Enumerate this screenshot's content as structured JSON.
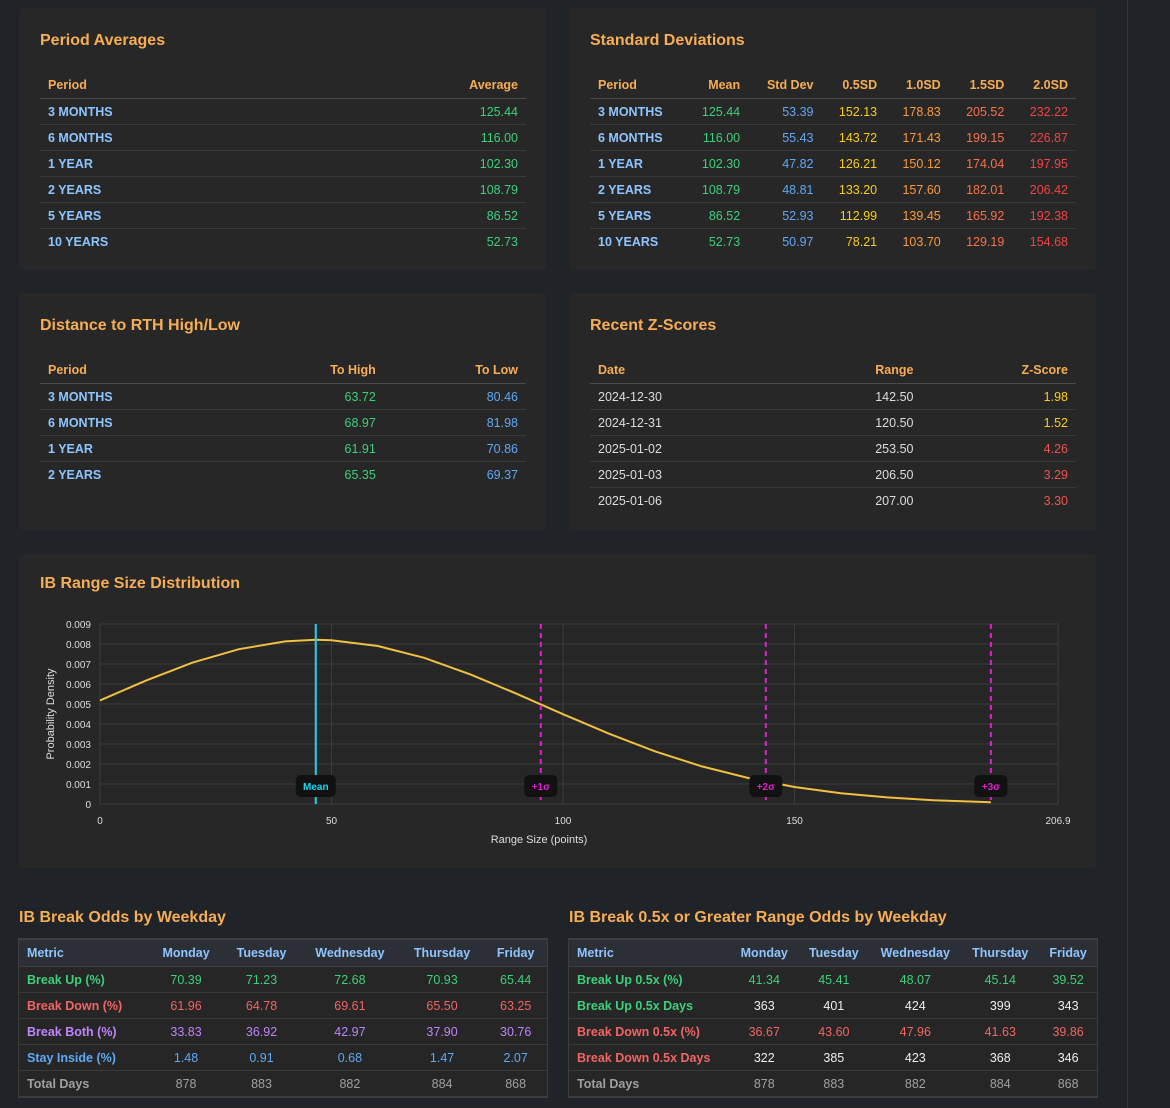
{
  "period_averages": {
    "title": "Period Averages",
    "columns": [
      "Period",
      "Average"
    ],
    "rows": [
      [
        "3 MONTHS",
        "125.44"
      ],
      [
        "6 MONTHS",
        "116.00"
      ],
      [
        "1 YEAR",
        "102.30"
      ],
      [
        "2 YEARS",
        "108.79"
      ],
      [
        "5 YEARS",
        "86.52"
      ],
      [
        "10 YEARS",
        "52.73"
      ]
    ]
  },
  "standard_deviations": {
    "title": "Standard Deviations",
    "columns": [
      "Period",
      "Mean",
      "Std Dev",
      "0.5SD",
      "1.0SD",
      "1.5SD",
      "2.0SD"
    ],
    "rows": [
      [
        "3 MONTHS",
        "125.44",
        "53.39",
        "152.13",
        "178.83",
        "205.52",
        "232.22"
      ],
      [
        "6 MONTHS",
        "116.00",
        "55.43",
        "143.72",
        "171.43",
        "199.15",
        "226.87"
      ],
      [
        "1 YEAR",
        "102.30",
        "47.82",
        "126.21",
        "150.12",
        "174.04",
        "197.95"
      ],
      [
        "2 YEARS",
        "108.79",
        "48.81",
        "133.20",
        "157.60",
        "182.01",
        "206.42"
      ],
      [
        "5 YEARS",
        "86.52",
        "52.93",
        "112.99",
        "139.45",
        "165.92",
        "192.38"
      ],
      [
        "10 YEARS",
        "52.73",
        "50.97",
        "78.21",
        "103.70",
        "129.19",
        "154.68"
      ]
    ]
  },
  "distance_rth": {
    "title": "Distance to RTH High/Low",
    "columns": [
      "Period",
      "To High",
      "To Low"
    ],
    "rows": [
      [
        "3 MONTHS",
        "63.72",
        "80.46"
      ],
      [
        "6 MONTHS",
        "68.97",
        "81.98"
      ],
      [
        "1 YEAR",
        "61.91",
        "70.86"
      ],
      [
        "2 YEARS",
        "65.35",
        "69.37"
      ]
    ]
  },
  "recent_z_scores": {
    "title": "Recent Z-Scores",
    "columns": [
      "Date",
      "Range",
      "Z-Score"
    ],
    "rows": [
      [
        "2024-12-30",
        "142.50",
        "1.98"
      ],
      [
        "2024-12-31",
        "120.50",
        "1.52"
      ],
      [
        "2025-01-02",
        "253.50",
        "4.26"
      ],
      [
        "2025-01-03",
        "206.50",
        "3.29"
      ],
      [
        "2025-01-06",
        "207.00",
        "3.30"
      ]
    ]
  },
  "chart_data": {
    "type": "line",
    "title": "IB Range Size Distribution",
    "x_label": "Range Size (points)",
    "y_label": "Probability Density",
    "x": [
      0,
      10,
      20,
      30,
      40,
      46.6,
      50,
      60,
      70,
      80,
      90,
      100,
      110,
      120,
      130,
      140,
      150,
      160,
      170,
      180,
      192.4
    ],
    "series": [
      {
        "color": "#f0c040",
        "values": [
          0.00518,
          0.00618,
          0.00707,
          0.00774,
          0.00813,
          0.00821,
          0.00819,
          0.0079,
          0.00731,
          0.00648,
          0.00551,
          0.00449,
          0.00351,
          0.00262,
          0.00188,
          0.0013,
          0.00085,
          0.00054,
          0.00033,
          0.00019,
          9e-05
        ]
      }
    ],
    "annotations": [
      {
        "label": "Mean",
        "x": 46.6,
        "color": "#22d3ee",
        "dashed": false
      },
      {
        "label": "+1σ",
        "x": 95.2,
        "color": "#e21fd0",
        "dashed": true
      },
      {
        "label": "+2σ",
        "x": 143.8,
        "color": "#e21fd0",
        "dashed": true
      },
      {
        "label": "+3σ",
        "x": 192.4,
        "color": "#e21fd0",
        "dashed": true
      }
    ],
    "xlim": [
      0,
      206.9
    ],
    "xticks": [
      0,
      50,
      100,
      150,
      206.9
    ],
    "ylim": [
      0,
      0.009
    ],
    "yticks": [
      0,
      0.001,
      0.002,
      0.003,
      0.004,
      0.005,
      0.006,
      0.007,
      0.008,
      0.009
    ],
    "grid": true
  },
  "break_odds": {
    "title": "IB Break Odds by Weekday",
    "columns": [
      "Metric",
      "Monday",
      "Tuesday",
      "Wednesday",
      "Thursday",
      "Friday"
    ],
    "rows": [
      [
        "Break Up (%)",
        "70.39",
        "71.23",
        "72.68",
        "70.93",
        "65.44"
      ],
      [
        "Break Down (%)",
        "61.96",
        "64.78",
        "69.61",
        "65.50",
        "63.25"
      ],
      [
        "Break Both (%)",
        "33.83",
        "36.92",
        "42.97",
        "37.90",
        "30.76"
      ],
      [
        "Stay Inside (%)",
        "1.48",
        "0.91",
        "0.68",
        "1.47",
        "2.07"
      ],
      [
        "Total Days",
        "878",
        "883",
        "882",
        "884",
        "868"
      ]
    ]
  },
  "break_half_odds": {
    "title": "IB Break 0.5x or Greater Range Odds by Weekday",
    "columns": [
      "Metric",
      "Monday",
      "Tuesday",
      "Wednesday",
      "Thursday",
      "Friday"
    ],
    "rows": [
      [
        "Break Up 0.5x (%)",
        "41.34",
        "45.41",
        "48.07",
        "45.14",
        "39.52"
      ],
      [
        "Break Up 0.5x Days",
        "363",
        "401",
        "424",
        "399",
        "343"
      ],
      [
        "Break Down 0.5x (%)",
        "36.67",
        "43.60",
        "47.96",
        "41.63",
        "39.86"
      ],
      [
        "Break Down 0.5x Days",
        "322",
        "385",
        "423",
        "368",
        "346"
      ],
      [
        "Total Days",
        "878",
        "883",
        "882",
        "884",
        "868"
      ]
    ]
  }
}
